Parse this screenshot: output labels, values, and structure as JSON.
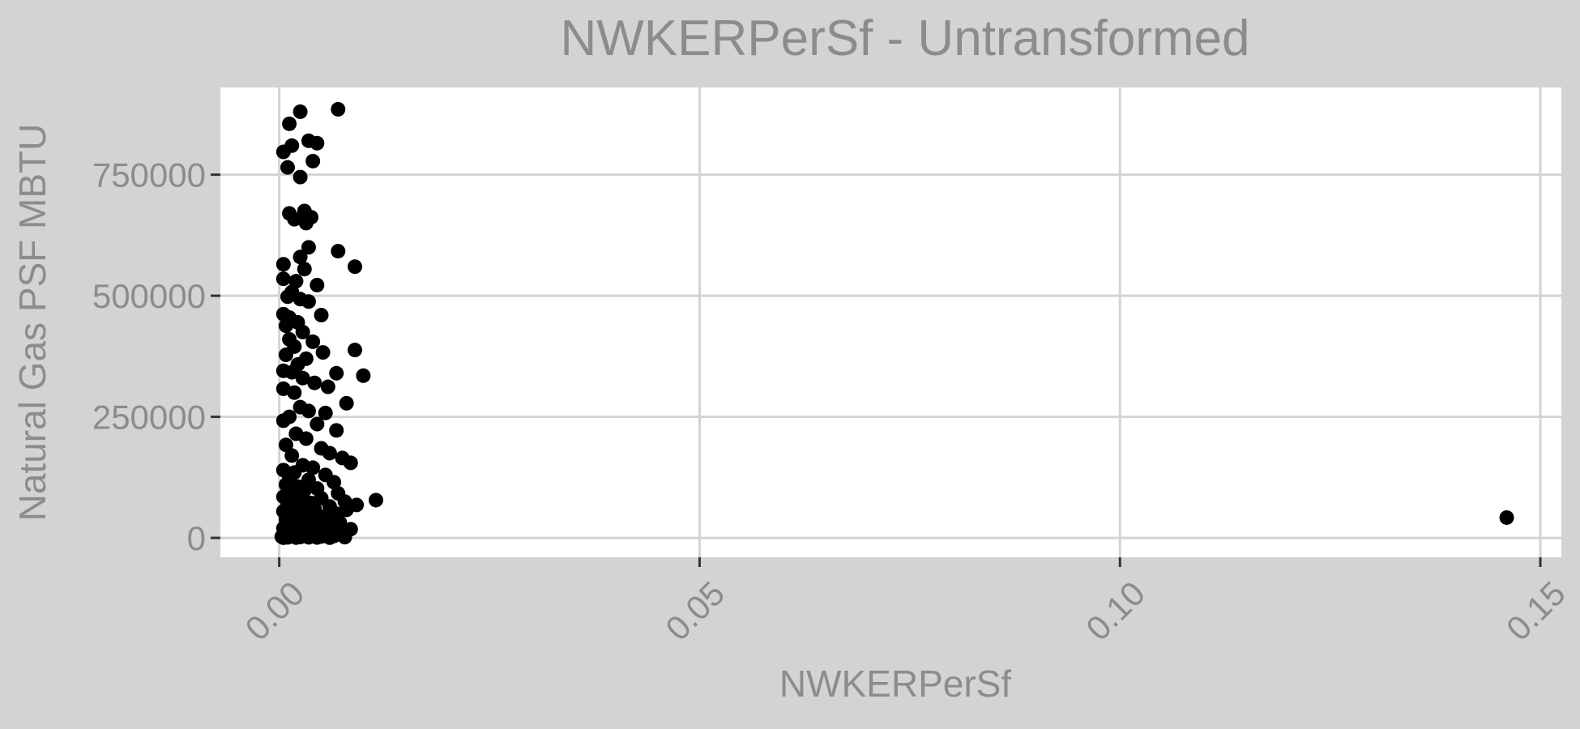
{
  "colors": {
    "figure_background": "#d3d3d3",
    "panel_background": "#ffffff",
    "gridlines": "#d3d3d3",
    "text": "#8c8c8c",
    "points": "#000000"
  },
  "chart_data": {
    "type": "scatter",
    "title": "NWKERPerSf - Untransformed",
    "xlabel": "NWKERPerSf",
    "ylabel": "Natural Gas PSF MBTU",
    "xlim": [
      -0.007,
      0.1525
    ],
    "ylim": [
      -40000,
      930000
    ],
    "x_ticks": [
      0.0,
      0.05,
      0.1,
      0.15
    ],
    "x_tick_labels": [
      "0.00",
      "0.05",
      "0.10",
      "0.15"
    ],
    "y_ticks": [
      0,
      250000,
      500000,
      750000
    ],
    "y_tick_labels": [
      "0",
      "250000",
      "500000",
      "750000"
    ],
    "grid": true,
    "legend": "none",
    "x_tick_label_rotation": "-45deg",
    "points": [
      [
        0.007,
        885000
      ],
      [
        0.0025,
        880000
      ],
      [
        0.0012,
        855000
      ],
      [
        0.0035,
        820000
      ],
      [
        0.0045,
        815000
      ],
      [
        0.0015,
        810000
      ],
      [
        0.0005,
        797000
      ],
      [
        0.004,
        778000
      ],
      [
        0.001,
        765000
      ],
      [
        0.0025,
        745000
      ],
      [
        0.0012,
        670000
      ],
      [
        0.003,
        675000
      ],
      [
        0.0038,
        662000
      ],
      [
        0.0018,
        658000
      ],
      [
        0.0032,
        650000
      ],
      [
        0.0035,
        600000
      ],
      [
        0.007,
        592000
      ],
      [
        0.0025,
        580000
      ],
      [
        0.0005,
        565000
      ],
      [
        0.009,
        560000
      ],
      [
        0.003,
        555000
      ],
      [
        0.0005,
        535000
      ],
      [
        0.002,
        530000
      ],
      [
        0.0045,
        522000
      ],
      [
        0.0015,
        508000
      ],
      [
        0.001,
        498000
      ],
      [
        0.0025,
        493000
      ],
      [
        0.0035,
        488000
      ],
      [
        0.0005,
        462000
      ],
      [
        0.005,
        460000
      ],
      [
        0.0012,
        455000
      ],
      [
        0.0022,
        445000
      ],
      [
        0.0008,
        438000
      ],
      [
        0.0028,
        425000
      ],
      [
        0.0012,
        410000
      ],
      [
        0.004,
        405000
      ],
      [
        0.0018,
        395000
      ],
      [
        0.009,
        388000
      ],
      [
        0.0052,
        383000
      ],
      [
        0.0008,
        378000
      ],
      [
        0.0032,
        370000
      ],
      [
        0.0022,
        358000
      ],
      [
        0.0005,
        345000
      ],
      [
        0.0015,
        342000
      ],
      [
        0.0068,
        340000
      ],
      [
        0.01,
        335000
      ],
      [
        0.0028,
        330000
      ],
      [
        0.0042,
        320000
      ],
      [
        0.0058,
        312000
      ],
      [
        0.0005,
        308000
      ],
      [
        0.0018,
        300000
      ],
      [
        0.008,
        278000
      ],
      [
        0.0025,
        270000
      ],
      [
        0.0035,
        262000
      ],
      [
        0.0055,
        258000
      ],
      [
        0.0012,
        250000
      ],
      [
        0.0005,
        242000
      ],
      [
        0.0045,
        235000
      ],
      [
        0.0068,
        222000
      ],
      [
        0.002,
        215000
      ],
      [
        0.0032,
        205000
      ],
      [
        0.0008,
        192000
      ],
      [
        0.005,
        185000
      ],
      [
        0.006,
        175000
      ],
      [
        0.0015,
        170000
      ],
      [
        0.0075,
        165000
      ],
      [
        0.0085,
        155000
      ],
      [
        0.0028,
        150000
      ],
      [
        0.004,
        145000
      ],
      [
        0.0005,
        140000
      ],
      [
        0.0018,
        135000
      ],
      [
        0.0055,
        130000
      ],
      [
        0.0012,
        125000
      ],
      [
        0.0035,
        120000
      ],
      [
        0.0065,
        115000
      ],
      [
        0.0008,
        110000
      ],
      [
        0.0022,
        106000
      ],
      [
        0.0045,
        102000
      ],
      [
        0.003,
        98000
      ],
      [
        0.007,
        92000
      ],
      [
        0.0015,
        88000
      ],
      [
        0.0005,
        85000
      ],
      [
        0.005,
        82000
      ],
      [
        0.0025,
        78000
      ],
      [
        0.0115,
        78000
      ],
      [
        0.0078,
        75000
      ],
      [
        0.0038,
        72000
      ],
      [
        0.001,
        69000
      ],
      [
        0.0092,
        68000
      ],
      [
        0.006,
        65000
      ],
      [
        0.002,
        62000
      ],
      [
        0.0042,
        60000
      ],
      [
        0.008,
        58000
      ],
      [
        0.0005,
        55000
      ],
      [
        0.0032,
        52000
      ],
      [
        0.0068,
        50000
      ],
      [
        0.0015,
        48000
      ],
      [
        0.0055,
        45000
      ],
      [
        0.0025,
        42000
      ],
      [
        0.0048,
        40000
      ],
      [
        0.0008,
        38000
      ],
      [
        0.0038,
        35000
      ],
      [
        0.0072,
        32000
      ],
      [
        0.0018,
        30000
      ],
      [
        0.0062,
        28000
      ],
      [
        0.0028,
        25000
      ],
      [
        0.0052,
        22000
      ],
      [
        0.0005,
        20000
      ],
      [
        0.0085,
        18000
      ],
      [
        0.0035,
        16000
      ],
      [
        0.0012,
        14000
      ],
      [
        0.0045,
        12000
      ],
      [
        0.0075,
        10000
      ],
      [
        0.0022,
        9000
      ],
      [
        0.0058,
        8000
      ],
      [
        0.0008,
        7000
      ],
      [
        0.004,
        6000
      ],
      [
        0.003,
        5000
      ],
      [
        0.0065,
        4000
      ],
      [
        0.0015,
        3500
      ],
      [
        0.005,
        3000
      ],
      [
        0.0003,
        2500
      ],
      [
        0.0025,
        2000
      ],
      [
        0.0078,
        1500
      ],
      [
        0.0035,
        1200
      ],
      [
        0.001,
        1000
      ],
      [
        0.0045,
        800
      ],
      [
        0.002,
        600
      ],
      [
        0.006,
        500
      ],
      [
        0.0005,
        400
      ],
      [
        0.146,
        42000
      ]
    ]
  }
}
